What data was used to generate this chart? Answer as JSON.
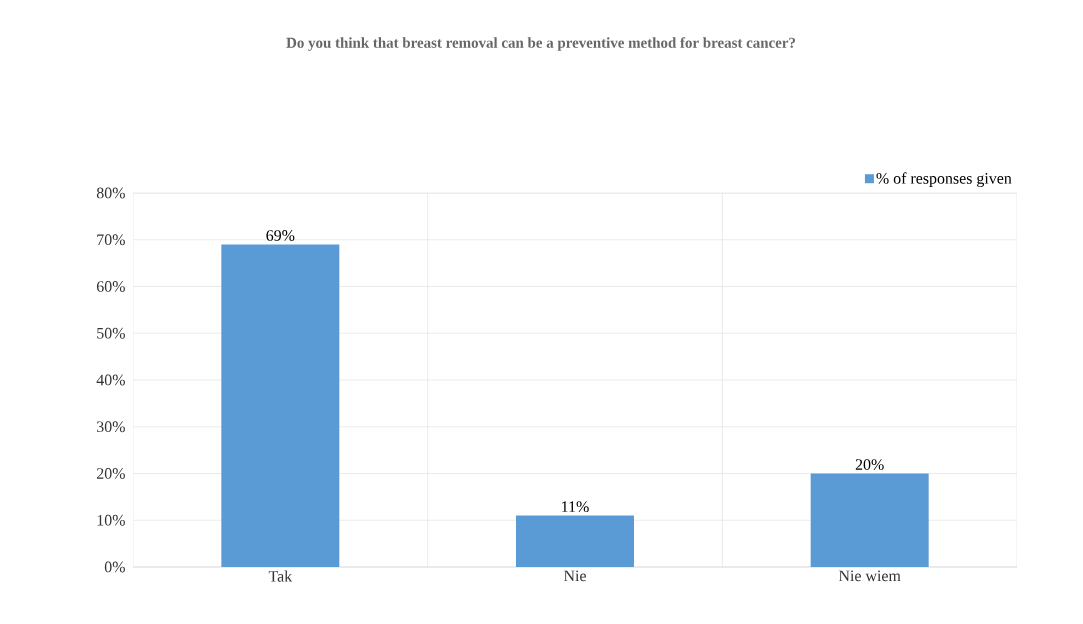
{
  "chart_data": {
    "type": "bar",
    "title": "Do you think that breast removal can be a preventive method for breast cancer?",
    "categories": [
      "Tak",
      "Nie",
      "Nie wiem"
    ],
    "series": [
      {
        "name": "% of responses given",
        "color": "#5b9bd5",
        "values": [
          69,
          11,
          20
        ],
        "value_labels": [
          "69%",
          "11%",
          "20%"
        ]
      }
    ],
    "ylim": [
      0,
      80
    ],
    "yticks": [
      {
        "value": 0,
        "label": "0%"
      },
      {
        "value": 10,
        "label": "10%"
      },
      {
        "value": 20,
        "label": "20%"
      },
      {
        "value": 30,
        "label": "30%"
      },
      {
        "value": 40,
        "label": "40%"
      },
      {
        "value": 50,
        "label": "50%"
      },
      {
        "value": 60,
        "label": "60%"
      },
      {
        "value": 70,
        "label": "70%"
      },
      {
        "value": 80,
        "label": "80%"
      }
    ],
    "grid": true,
    "legend": "top right"
  }
}
